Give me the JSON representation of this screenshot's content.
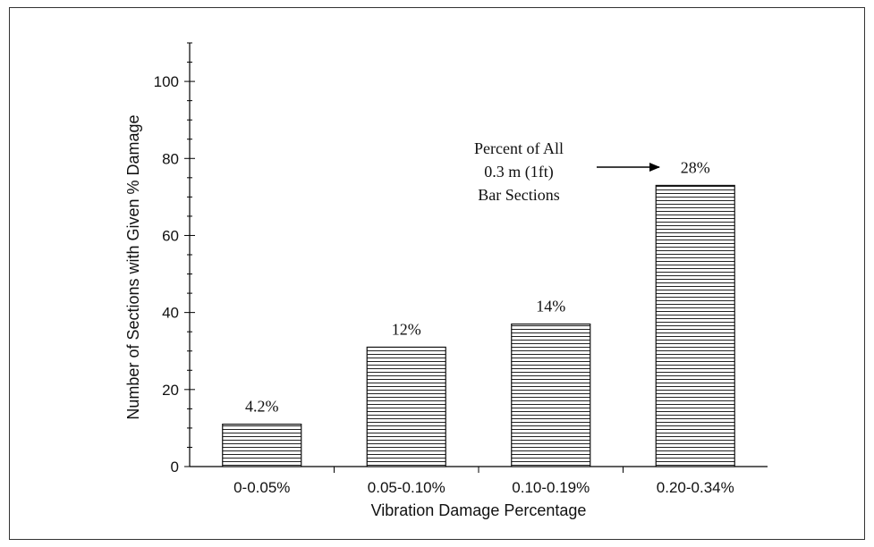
{
  "chart_data": {
    "type": "bar",
    "categories": [
      "0-0.05%",
      "0.05-0.10%",
      "0.10-0.19%",
      "0.20-0.34%"
    ],
    "values": [
      11,
      31,
      37,
      73
    ],
    "data_labels": [
      "4.2%",
      "12%",
      "14%",
      "28%"
    ],
    "title": "",
    "xlabel": "Vibration Damage Percentage",
    "ylabel": "Number of Sections with Given % Damage",
    "ylim": [
      0,
      110
    ],
    "yticks": [
      0,
      20,
      40,
      60,
      80,
      100
    ],
    "grid": false,
    "bar_fill": "horizontal-hatch",
    "annotation": {
      "lines": [
        "Percent of All",
        "0.3 m (1ft)",
        "Bar Sections"
      ],
      "arrow_target": "0.20-0.34%"
    }
  }
}
